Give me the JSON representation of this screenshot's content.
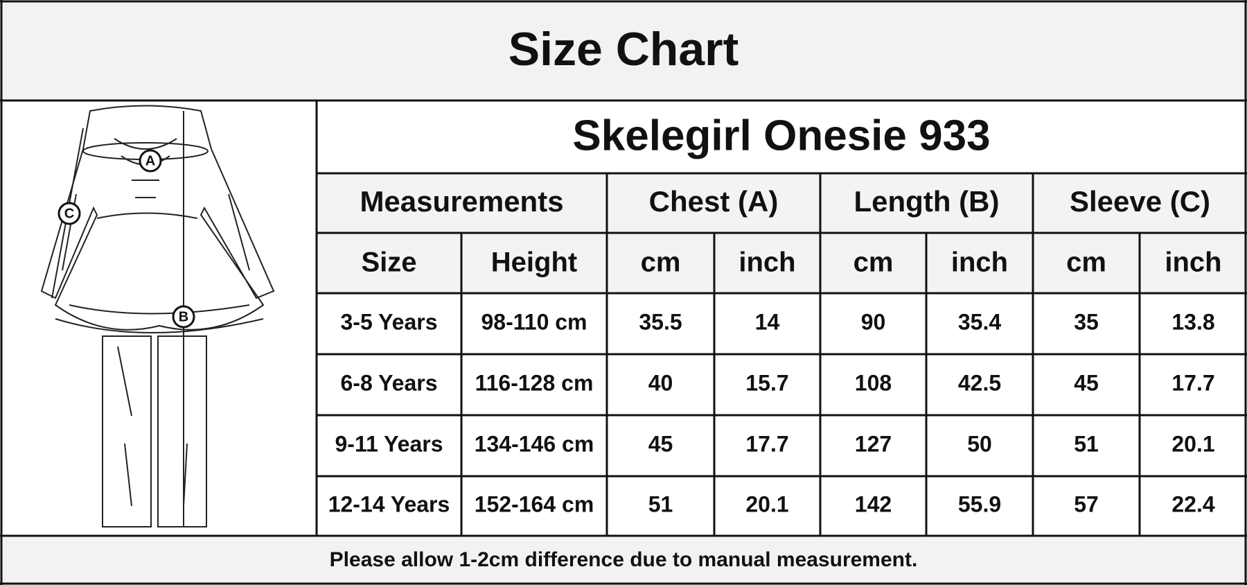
{
  "title": "Size Chart",
  "illustration": {
    "labels": [
      "A",
      "B",
      "C"
    ]
  },
  "table": {
    "product": "Skelegirl Onesie 933",
    "groups": [
      "Measurements",
      "Chest (A)",
      "Length (B)",
      "Sleeve (C)"
    ],
    "columns": [
      "Size",
      "Height",
      "cm",
      "inch",
      "cm",
      "inch",
      "cm",
      "inch"
    ],
    "rows": [
      [
        "3-5 Years",
        "98-110 cm",
        "35.5",
        "14",
        "90",
        "35.4",
        "35",
        "13.8"
      ],
      [
        "6-8 Years",
        "116-128 cm",
        "40",
        "15.7",
        "108",
        "42.5",
        "45",
        "17.7"
      ],
      [
        "9-11 Years",
        "134-146 cm",
        "45",
        "17.7",
        "127",
        "50",
        "51",
        "20.1"
      ],
      [
        "12-14 Years",
        "152-164 cm",
        "51",
        "20.1",
        "142",
        "55.9",
        "57",
        "22.4"
      ]
    ]
  },
  "note": "Please allow 1-2cm difference due to manual measurement."
}
